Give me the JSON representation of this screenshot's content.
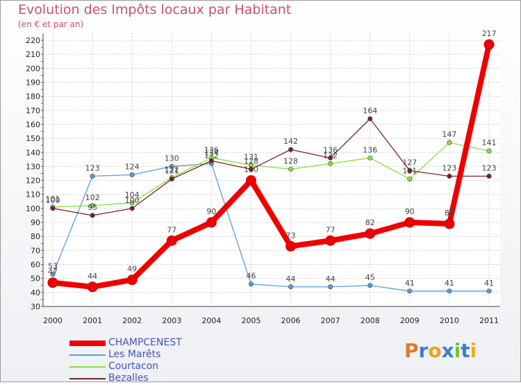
{
  "chart_data": {
    "type": "line",
    "title": "Evolution des Impôts locaux par Habitant",
    "subtitle": "(en € et par an)",
    "x": [
      "2000",
      "2001",
      "2002",
      "2003",
      "2004",
      "2005",
      "2006",
      "2007",
      "2008",
      "2009",
      "2010",
      "2011"
    ],
    "ylim": [
      30,
      220
    ],
    "yticks": [
      30,
      40,
      50,
      60,
      70,
      80,
      90,
      100,
      110,
      120,
      130,
      140,
      150,
      160,
      170,
      180,
      190,
      200,
      210,
      220
    ],
    "grid": true,
    "legend_position": "bottom-left",
    "series": [
      {
        "name": "CHAMPCENEST",
        "color": "#ee0000",
        "values": [
          47,
          44,
          49,
          77,
          90,
          120,
          73,
          77,
          82,
          90,
          89,
          217
        ],
        "labels": [
          "47",
          "44",
          "49",
          "77",
          "90",
          "120",
          "73",
          "77",
          "82",
          "90",
          "89",
          "217"
        ]
      },
      {
        "name": "Les Marêts",
        "color": "#5b9bd5",
        "values": [
          53,
          123,
          124,
          130,
          132,
          46,
          44,
          44,
          45,
          41,
          41,
          41
        ],
        "labels": [
          "53",
          "123",
          "124",
          "130",
          "132",
          "46",
          "44",
          "44",
          "45",
          "41",
          "41",
          "41"
        ]
      },
      {
        "name": "Courtacon",
        "color": "#88dd44",
        "values": [
          101,
          102,
          104,
          122,
          136,
          131,
          128,
          132,
          136,
          121,
          147,
          141
        ],
        "labels": [
          "101",
          "102",
          "104",
          "122",
          "136",
          "131",
          "128",
          "132",
          "136",
          "121",
          "147",
          "141"
        ]
      },
      {
        "name": "Bezalles",
        "color": "#772222",
        "values": [
          100,
          95,
          100,
          121,
          134,
          128,
          142,
          136,
          164,
          127,
          123,
          123
        ],
        "labels": [
          "100",
          "95",
          "100",
          "121",
          "134",
          "128",
          "142",
          "136",
          "164",
          "127",
          "123",
          "123"
        ]
      }
    ]
  },
  "logo": {
    "text": "Proxiti",
    "letters": [
      "P",
      "r",
      "o",
      "x",
      "i",
      "t",
      "i"
    ],
    "colors": [
      "#e87722",
      "#3a7fd0",
      "#f0a020",
      "#3a7fd0",
      "#7cbf3a",
      "#3a7fd0",
      "#e8b020"
    ]
  }
}
